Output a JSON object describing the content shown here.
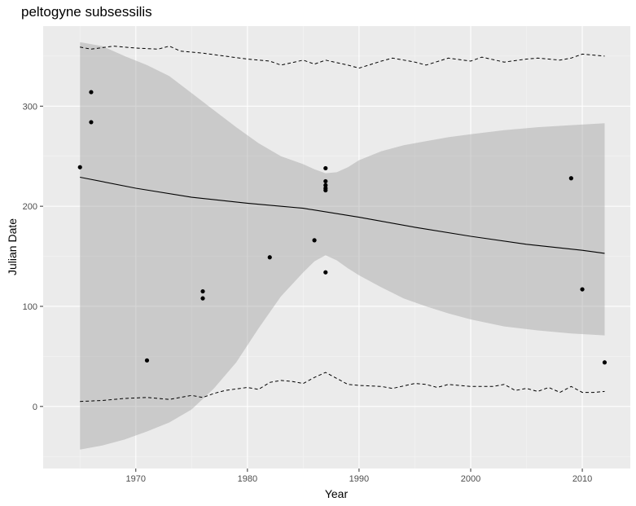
{
  "chart_data": {
    "type": "scatter",
    "title": "peltogyne subsessilis",
    "xlabel": "Year",
    "ylabel": "Julian Date",
    "xlim": [
      1961.7,
      2014.3
    ],
    "ylim": [
      -62,
      380
    ],
    "xticks": [
      1970,
      1980,
      1990,
      2000,
      2010
    ],
    "yticks": [
      0,
      100,
      200,
      300
    ],
    "grid": true,
    "points": [
      {
        "x": 1965,
        "y": 239
      },
      {
        "x": 1966,
        "y": 314
      },
      {
        "x": 1966,
        "y": 284
      },
      {
        "x": 1971,
        "y": 46
      },
      {
        "x": 1976,
        "y": 115
      },
      {
        "x": 1976,
        "y": 108
      },
      {
        "x": 1982,
        "y": 149
      },
      {
        "x": 1986,
        "y": 166
      },
      {
        "x": 1987,
        "y": 238
      },
      {
        "x": 1987,
        "y": 225
      },
      {
        "x": 1987,
        "y": 221
      },
      {
        "x": 1987,
        "y": 218
      },
      {
        "x": 1987,
        "y": 216
      },
      {
        "x": 1987,
        "y": 134
      },
      {
        "x": 2009,
        "y": 228
      },
      {
        "x": 2010,
        "y": 117
      },
      {
        "x": 2012,
        "y": 44
      }
    ],
    "trend": {
      "x": [
        1965,
        1970,
        1975,
        1980,
        1985,
        1990,
        1995,
        2000,
        2005,
        2010,
        2012
      ],
      "y": [
        229,
        218,
        209,
        203,
        198,
        189,
        179,
        170,
        162,
        156,
        153
      ]
    },
    "confidence_band": {
      "x": [
        1965,
        1967,
        1969,
        1971,
        1973,
        1975,
        1977,
        1979,
        1981,
        1983,
        1985,
        1986,
        1987,
        1988,
        1989,
        1990,
        1992,
        1994,
        1996,
        1998,
        2000,
        2003,
        2006,
        2009,
        2012
      ],
      "upper": [
        364,
        360,
        350,
        341,
        330,
        313,
        296,
        279,
        263,
        250,
        242,
        237,
        233,
        234,
        239,
        246,
        255,
        261,
        265,
        269,
        272,
        276,
        279,
        281,
        283
      ],
      "lower": [
        -43,
        -39,
        -33,
        -25,
        -16,
        -3,
        18,
        44,
        78,
        110,
        134,
        145,
        151,
        146,
        138,
        131,
        119,
        108,
        100,
        93,
        87,
        80,
        76,
        73,
        71
      ]
    },
    "dashed_upper": {
      "x": [
        1965,
        1966,
        1968,
        1970,
        1972,
        1973,
        1974,
        1976,
        1978,
        1980,
        1982,
        1983,
        1985,
        1986,
        1987,
        1989,
        1990,
        1992,
        1993,
        1995,
        1996,
        1998,
        2000,
        2001,
        2003,
        2005,
        2006,
        2008,
        2009,
        2010,
        2012
      ],
      "y": [
        359,
        357,
        360,
        358,
        357,
        360,
        355,
        353,
        350,
        347,
        345,
        341,
        346,
        342,
        346,
        341,
        338,
        345,
        348,
        344,
        341,
        348,
        345,
        349,
        344,
        347,
        348,
        346,
        348,
        352,
        350
      ]
    },
    "dashed_lower": {
      "x": [
        1965,
        1967,
        1969,
        1971,
        1973,
        1975,
        1976,
        1977,
        1978,
        1980,
        1981,
        1982,
        1983,
        1984,
        1985,
        1986,
        1987,
        1988,
        1989,
        1990,
        1992,
        1993,
        1995,
        1996,
        1997,
        1998,
        2000,
        2002,
        2003,
        2004,
        2005,
        2006,
        2007,
        2008,
        2009,
        2010,
        2011,
        2012
      ],
      "y": [
        5,
        6,
        8,
        9,
        7,
        11,
        9,
        13,
        16,
        19,
        17,
        24,
        26,
        25,
        23,
        29,
        34,
        28,
        22,
        21,
        20,
        18,
        23,
        22,
        19,
        22,
        20,
        20,
        22,
        16,
        18,
        15,
        19,
        14,
        20,
        14,
        14,
        15
      ]
    }
  }
}
